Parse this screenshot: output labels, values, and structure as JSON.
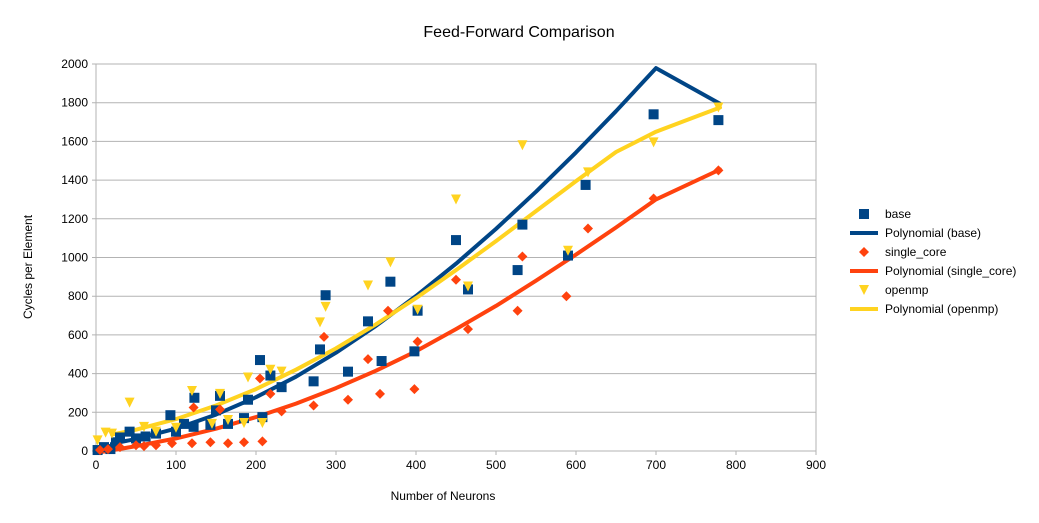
{
  "chart_data": {
    "type": "scatter",
    "title": "Feed-Forward Comparison",
    "xlabel": "Number of Neurons",
    "ylabel": "Cycles per Element",
    "xlim": [
      0,
      900
    ],
    "ylim": [
      0,
      2000
    ],
    "x_ticks": [
      "0",
      "100",
      "200",
      "300",
      "400",
      "500",
      "600",
      "700",
      "800",
      "900"
    ],
    "y_ticks": [
      "0",
      "200",
      "400",
      "600",
      "800",
      "1000",
      "1200",
      "1400",
      "1600",
      "1800",
      "2000"
    ],
    "grid": "horizontal",
    "legend_position": "right",
    "series": [
      {
        "name": "base",
        "marker": "square",
        "color": "#004586",
        "points": [
          [
            2,
            5
          ],
          [
            10,
            20
          ],
          [
            18,
            10
          ],
          [
            25,
            45
          ],
          [
            30,
            70
          ],
          [
            42,
            100
          ],
          [
            50,
            65
          ],
          [
            62,
            75
          ],
          [
            75,
            90
          ],
          [
            93,
            185
          ],
          [
            100,
            100
          ],
          [
            110,
            140
          ],
          [
            122,
            125
          ],
          [
            123,
            275
          ],
          [
            143,
            135
          ],
          [
            150,
            210
          ],
          [
            155,
            285
          ],
          [
            165,
            140
          ],
          [
            185,
            170
          ],
          [
            190,
            265
          ],
          [
            205,
            470
          ],
          [
            208,
            175
          ],
          [
            218,
            390
          ],
          [
            232,
            330
          ],
          [
            272,
            360
          ],
          [
            280,
            525
          ],
          [
            287,
            805
          ],
          [
            315,
            410
          ],
          [
            340,
            670
          ],
          [
            357,
            465
          ],
          [
            368,
            875
          ],
          [
            398,
            515
          ],
          [
            402,
            725
          ],
          [
            450,
            1090
          ],
          [
            465,
            835
          ],
          [
            527,
            935
          ],
          [
            533,
            1170
          ],
          [
            590,
            1010
          ],
          [
            612,
            1375
          ],
          [
            697,
            1740
          ],
          [
            778,
            1710
          ]
        ]
      },
      {
        "name": "Polynomial (base)",
        "line": true,
        "color": "#004586",
        "points": [
          [
            20,
            38
          ],
          [
            50,
            62
          ],
          [
            100,
            116
          ],
          [
            150,
            188
          ],
          [
            200,
            278
          ],
          [
            250,
            384
          ],
          [
            300,
            508
          ],
          [
            350,
            647
          ],
          [
            400,
            801
          ],
          [
            450,
            968
          ],
          [
            500,
            1148
          ],
          [
            550,
            1340
          ],
          [
            600,
            1543
          ],
          [
            650,
            1756
          ],
          [
            700,
            1979
          ],
          [
            780,
            1795
          ]
        ]
      },
      {
        "name": "single_core",
        "marker": "diamond",
        "color": "#ff420e",
        "points": [
          [
            5,
            5
          ],
          [
            15,
            10
          ],
          [
            30,
            20
          ],
          [
            50,
            30
          ],
          [
            60,
            25
          ],
          [
            75,
            30
          ],
          [
            95,
            40
          ],
          [
            120,
            40
          ],
          [
            122,
            225
          ],
          [
            143,
            45
          ],
          [
            155,
            215
          ],
          [
            165,
            40
          ],
          [
            185,
            45
          ],
          [
            205,
            375
          ],
          [
            208,
            50
          ],
          [
            218,
            295
          ],
          [
            232,
            205
          ],
          [
            272,
            235
          ],
          [
            285,
            590
          ],
          [
            315,
            265
          ],
          [
            340,
            475
          ],
          [
            355,
            295
          ],
          [
            365,
            725
          ],
          [
            398,
            320
          ],
          [
            402,
            565
          ],
          [
            450,
            885
          ],
          [
            465,
            630
          ],
          [
            527,
            725
          ],
          [
            533,
            1005
          ],
          [
            588,
            800
          ],
          [
            615,
            1150
          ],
          [
            697,
            1305
          ],
          [
            778,
            1450
          ]
        ]
      },
      {
        "name": "Polynomial (single_core)",
        "line": true,
        "color": "#ff420e",
        "points": [
          [
            0,
            -10
          ],
          [
            50,
            25
          ],
          [
            100,
            65
          ],
          [
            150,
            115
          ],
          [
            200,
            175
          ],
          [
            250,
            245
          ],
          [
            300,
            325
          ],
          [
            350,
            415
          ],
          [
            400,
            515
          ],
          [
            450,
            630
          ],
          [
            500,
            750
          ],
          [
            550,
            880
          ],
          [
            600,
            1015
          ],
          [
            650,
            1155
          ],
          [
            700,
            1300
          ],
          [
            780,
            1455
          ]
        ]
      },
      {
        "name": "openmp",
        "marker": "triangle-down",
        "color": "#ffd320",
        "points": [
          [
            2,
            55
          ],
          [
            12,
            95
          ],
          [
            20,
            90
          ],
          [
            42,
            250
          ],
          [
            60,
            125
          ],
          [
            75,
            100
          ],
          [
            100,
            120
          ],
          [
            120,
            310
          ],
          [
            145,
            140
          ],
          [
            155,
            295
          ],
          [
            165,
            160
          ],
          [
            185,
            145
          ],
          [
            190,
            380
          ],
          [
            208,
            145
          ],
          [
            218,
            420
          ],
          [
            232,
            410
          ],
          [
            280,
            665
          ],
          [
            287,
            745
          ],
          [
            340,
            855
          ],
          [
            368,
            975
          ],
          [
            402,
            730
          ],
          [
            450,
            1300
          ],
          [
            465,
            850
          ],
          [
            533,
            1580
          ],
          [
            590,
            1035
          ],
          [
            615,
            1440
          ],
          [
            697,
            1595
          ],
          [
            778,
            1775
          ]
        ]
      },
      {
        "name": "Polynomial (openmp)",
        "line": true,
        "color": "#ffd320",
        "points": [
          [
            20,
            85
          ],
          [
            50,
            110
          ],
          [
            100,
            165
          ],
          [
            150,
            235
          ],
          [
            200,
            320
          ],
          [
            250,
            420
          ],
          [
            300,
            530
          ],
          [
            350,
            655
          ],
          [
            400,
            790
          ],
          [
            450,
            935
          ],
          [
            500,
            1085
          ],
          [
            550,
            1240
          ],
          [
            600,
            1395
          ],
          [
            650,
            1545
          ],
          [
            700,
            1650
          ],
          [
            780,
            1775
          ]
        ]
      }
    ]
  }
}
